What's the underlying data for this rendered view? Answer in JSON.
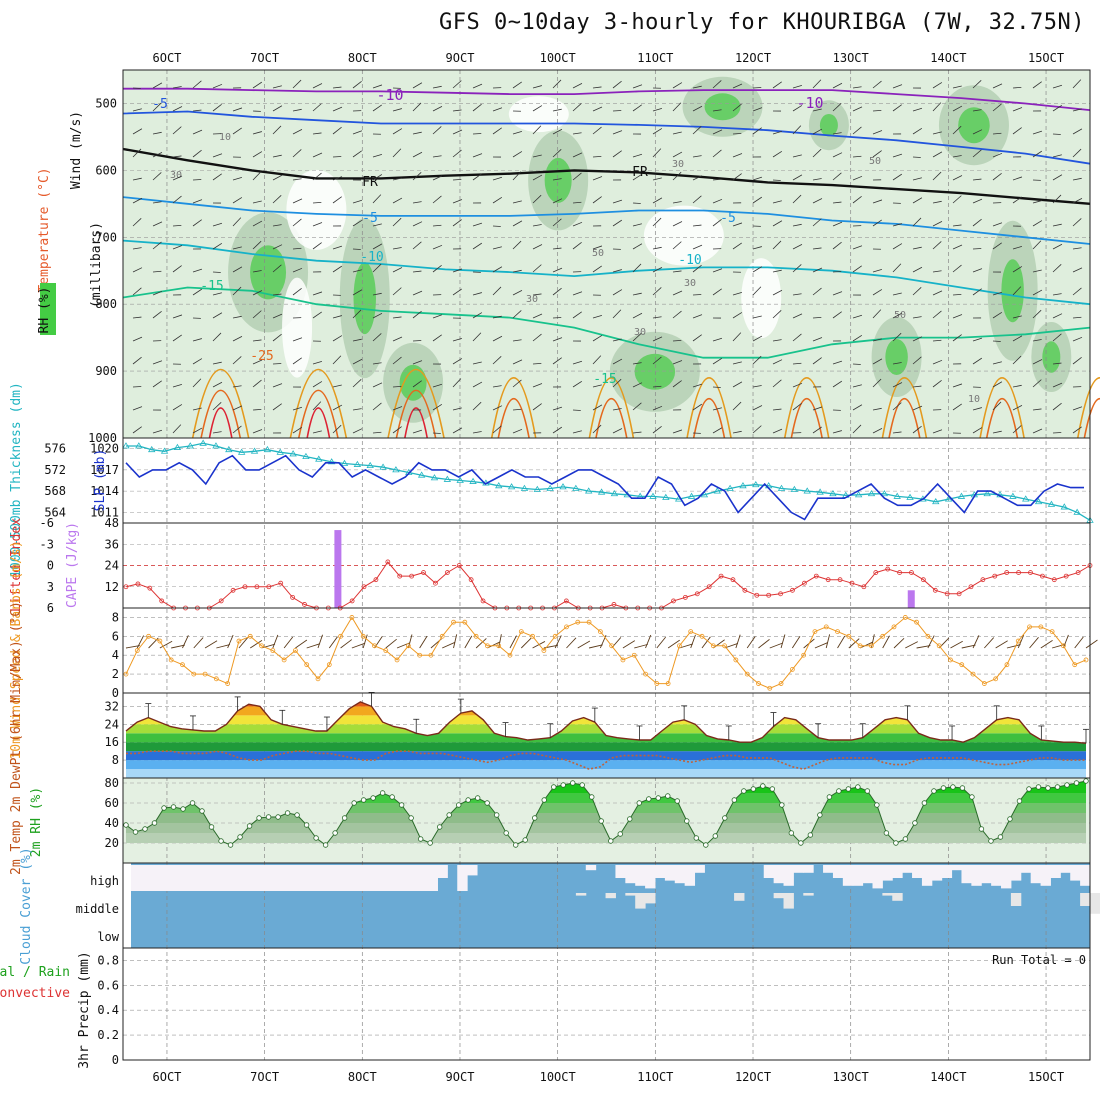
{
  "title": "GFS 0~10day 3-hourly for KHOURIBGA (7W, 32.75N)",
  "dates": [
    "6OCT",
    "7OCT",
    "8OCT",
    "9OCT",
    "10OCT",
    "11OCT",
    "12OCT",
    "13OCT",
    "14OCT",
    "15OCT"
  ],
  "colors": {
    "rh_green": "#44cc44",
    "rh_light": "#dfeedd",
    "thickness": "#22b5c2",
    "slp": "#1a33cc",
    "lifted_index": "#dd3333",
    "cape": "#bb77ee",
    "wind10m": "#ee9922",
    "precip_grid": "#aaaaaa",
    "cloud": "#6aaad4"
  },
  "chart_data": [
    {
      "type": "heatmap",
      "panel": "upper-air",
      "ylabel_rh": "RH (%)",
      "ylabel_temp": "Temperature (°C)",
      "ylabel_wind": "Wind (m/s)",
      "ylabel_pressure": "(millibars)",
      "y_ticks": [
        "500",
        "600",
        "700",
        "800",
        "900",
        "1000"
      ],
      "ylim": [
        450,
        1000
      ],
      "isotherm_labels": [
        "-10",
        "-10",
        "-5",
        "FR",
        "FR",
        "-5",
        "-5",
        "-10",
        "-10",
        "-15",
        "-15",
        "-25"
      ],
      "rh_labels": [
        "10",
        "30",
        "30",
        "30",
        "50",
        "50",
        "10",
        "30",
        "50",
        "30"
      ],
      "isotherms": [
        {
          "value": -10,
          "y": [
            478,
            478,
            480,
            482,
            482,
            484,
            486,
            486,
            482,
            480,
            480,
            480,
            486,
            492,
            500,
            510
          ]
        },
        {
          "value": -5,
          "y": [
            515,
            512,
            520,
            525,
            530,
            530,
            530,
            530,
            532,
            535,
            540,
            548,
            555,
            565,
            575,
            590
          ]
        },
        {
          "value": 0,
          "y": [
            568,
            585,
            600,
            612,
            612,
            608,
            605,
            600,
            603,
            610,
            618,
            622,
            628,
            634,
            642,
            650
          ]
        },
        {
          "value": 5,
          "y": [
            640,
            650,
            660,
            665,
            668,
            668,
            668,
            665,
            660,
            660,
            665,
            675,
            680,
            690,
            700,
            710
          ]
        },
        {
          "value": 10,
          "y": [
            705,
            712,
            725,
            735,
            740,
            748,
            752,
            758,
            750,
            745,
            745,
            750,
            760,
            775,
            790,
            800
          ]
        },
        {
          "value": 15,
          "y": [
            790,
            775,
            780,
            800,
            810,
            815,
            820,
            835,
            860,
            880,
            880,
            860,
            850,
            850,
            845,
            835
          ]
        }
      ]
    },
    {
      "type": "line",
      "panel": "thickness-slp",
      "ylabel_thickness": "1000-500mb Thickness (dm)",
      "ylabel_slp": "SLP (mb)",
      "thickness_ticks": [
        "564",
        "568",
        "572",
        "576"
      ],
      "slp_ticks": [
        "1011",
        "1014",
        "1017",
        "1020"
      ],
      "thickness_ylim": [
        562,
        578
      ],
      "slp_ylim": [
        1009.5,
        1021.5
      ],
      "thickness": [
        576.5,
        576.5,
        575.8,
        575.5,
        576.2,
        576.5,
        577,
        576.5,
        575.8,
        575.3,
        575.5,
        575.8,
        575.3,
        575,
        574.5,
        574,
        573.5,
        573.2,
        573,
        572.8,
        572.5,
        572,
        571.5,
        571,
        570.5,
        570.2,
        570,
        569.8,
        569.5,
        569,
        568.8,
        568.5,
        568.3,
        568.5,
        568.8,
        568.5,
        568,
        567.8,
        567.5,
        567.3,
        567,
        567,
        566.8,
        566.5,
        567,
        567.3,
        568,
        568.5,
        569,
        569.2,
        569,
        568.5,
        568.3,
        568,
        567.8,
        567.5,
        567.2,
        567.3,
        567.5,
        567.5,
        567,
        566.8,
        566.5,
        566,
        566.5,
        567,
        567.3,
        567.5,
        567.3,
        567,
        566.5,
        566,
        565.5,
        565,
        564,
        562.5
      ],
      "slp": [
        1018,
        1016,
        1017,
        1017,
        1018,
        1017,
        1015,
        1018,
        1019,
        1017,
        1017,
        1018,
        1019,
        1017,
        1016,
        1018,
        1018,
        1016,
        1017,
        1016,
        1015,
        1016,
        1018,
        1017,
        1017,
        1016,
        1017,
        1015,
        1016,
        1017,
        1016,
        1016,
        1015,
        1016,
        1017,
        1017,
        1016,
        1015,
        1013,
        1013,
        1016,
        1015,
        1012,
        1013,
        1015,
        1014,
        1011,
        1013,
        1015,
        1013,
        1011,
        1010,
        1013,
        1013,
        1013,
        1014,
        1015,
        1013,
        1012,
        1012,
        1013,
        1015,
        1013,
        1011,
        1014,
        1014,
        1013,
        1012,
        1012,
        1014,
        1015,
        1014.5,
        1014.5
      ],
      "thickness_marker": "triangle"
    },
    {
      "type": "line",
      "panel": "li-cape",
      "ylabel_li": "Lifted Index",
      "ylabel_cape": "CAPE (J/kg)",
      "li_ticks": [
        "-6",
        "-3",
        "0",
        "3",
        "6"
      ],
      "cape_ticks": [
        "12",
        "24",
        "36",
        "48"
      ],
      "li_ylim": [
        6,
        -6
      ],
      "cape_ylim": [
        0,
        48
      ],
      "lifted_index": [
        3,
        2.6,
        3.2,
        5,
        6,
        6.5,
        6,
        6.5,
        5,
        3.5,
        3,
        3,
        3,
        2.5,
        4.5,
        5.5,
        6,
        6.5,
        6,
        5,
        3,
        2,
        -0.5,
        1.5,
        1.5,
        1,
        2.5,
        1,
        0,
        2,
        5,
        7,
        7.5,
        6.5,
        7,
        6.5,
        6,
        5,
        6.5,
        7,
        6,
        5.5,
        6.5,
        6,
        6.5,
        6,
        5,
        4.5,
        4,
        3,
        1.5,
        2,
        3.5,
        4.2,
        4.2,
        4,
        3.5,
        2.5,
        1.5,
        2,
        2,
        2.5,
        3,
        1,
        0.5,
        1,
        1,
        2,
        3.5,
        4,
        4,
        3,
        2,
        1.5,
        1,
        1,
        1,
        1.5,
        2,
        1.5,
        1,
        0
      ],
      "cape_bars": [
        {
          "x_day": 7.75,
          "value": 44
        },
        {
          "x_day": 13.62,
          "value": 10
        }
      ],
      "zero_line": true
    },
    {
      "type": "line",
      "panel": "wind10m",
      "ylabel": "10m Wind Speed & Barbs (m/s)",
      "y_ticks": [
        "0",
        "2",
        "4",
        "6",
        "8"
      ],
      "ylim": [
        0,
        9
      ],
      "speed": [
        2,
        4.5,
        6,
        5.5,
        3.5,
        3,
        2,
        2,
        1.5,
        1,
        5.5,
        6,
        5,
        4.5,
        3.5,
        4.5,
        3,
        1.5,
        3,
        6,
        8,
        6,
        5,
        4.5,
        3.5,
        5,
        4,
        4,
        6,
        7.5,
        7.5,
        6,
        5,
        5,
        4,
        6.5,
        6,
        4.5,
        6,
        7,
        7.5,
        7.5,
        6.5,
        5,
        3.5,
        4,
        2,
        1,
        1,
        5,
        6.5,
        6,
        5,
        5,
        3.5,
        2,
        1,
        0.5,
        1,
        2.5,
        4,
        6.5,
        7,
        6.5,
        6,
        5,
        5,
        6,
        7,
        8,
        7.5,
        6,
        5,
        3.5,
        3,
        2,
        1,
        1.5,
        3,
        5.5,
        7,
        7,
        6.5,
        5,
        3,
        3.5
      ]
    },
    {
      "type": "area",
      "panel": "temp-dewpt",
      "ylabel": "2m Temp 2m DewPt (6hr Min/Max) (°C)",
      "y_ticks": [
        "8",
        "16",
        "24",
        "32"
      ],
      "ylim": [
        0,
        38
      ],
      "temperature": [
        21,
        25,
        27,
        25,
        23,
        22,
        21.5,
        21,
        21,
        24,
        30,
        33,
        32,
        26,
        24,
        23,
        22,
        21,
        21,
        26,
        31,
        34,
        32,
        25,
        23,
        22,
        20,
        19,
        20,
        25,
        29,
        30,
        26,
        20,
        18.5,
        18,
        17,
        17.5,
        18,
        21,
        25.5,
        27,
        25,
        19,
        18,
        17.5,
        17,
        17,
        21,
        25,
        26,
        24,
        19,
        17.5,
        17,
        16,
        16,
        18,
        23,
        27,
        26,
        22,
        18,
        17,
        17,
        17,
        18,
        22,
        26,
        27,
        26,
        20,
        18,
        17,
        17,
        16,
        18,
        22,
        26,
        27,
        26,
        20,
        17,
        16.5,
        16,
        16,
        15.5
      ],
      "dewpoint": [
        11,
        11,
        12,
        12,
        12,
        11,
        11,
        11,
        12,
        11,
        9,
        8,
        8,
        10,
        11,
        12,
        12,
        11,
        11,
        10,
        9,
        8,
        8,
        11,
        12,
        12,
        11,
        11,
        11,
        10,
        9,
        8,
        7,
        8,
        10,
        11,
        11,
        10,
        9,
        8,
        6,
        4,
        5,
        9,
        10,
        10,
        10,
        10,
        9,
        8,
        7,
        8,
        9,
        10,
        10,
        9,
        9,
        9,
        7,
        5,
        4,
        6,
        8,
        9,
        9,
        9,
        9,
        7,
        6,
        6,
        8,
        9,
        9,
        9,
        9,
        8,
        7,
        6,
        6,
        7,
        8,
        9,
        9,
        8,
        8,
        8
      ],
      "maxmin_ticks": true
    },
    {
      "type": "area",
      "panel": "rh2m",
      "ylabel": "2m RH (%)",
      "y_ticks": [
        "20",
        "40",
        "60",
        "80"
      ],
      "ylim": [
        0,
        85
      ],
      "rh": [
        38,
        31,
        34,
        40,
        55,
        56,
        54,
        60,
        52,
        36,
        22,
        18,
        26,
        37,
        45,
        46,
        46,
        50,
        48,
        38,
        25,
        18,
        30,
        45,
        60,
        63,
        65,
        70,
        66,
        58,
        45,
        24,
        20,
        36,
        48,
        58,
        63,
        65,
        60,
        48,
        30,
        18,
        23,
        45,
        63,
        76,
        78,
        80,
        78,
        66,
        42,
        22,
        29,
        44,
        60,
        64,
        65,
        67,
        62,
        42,
        25,
        18,
        27,
        45,
        63,
        72,
        74,
        77,
        74,
        58,
        30,
        20,
        28,
        48,
        66,
        72,
        74,
        76,
        72,
        58,
        30,
        20,
        24,
        40,
        60,
        72,
        75,
        76,
        75,
        66,
        34,
        22,
        26,
        44,
        62,
        74,
        76,
        75,
        76,
        78,
        80,
        82
      ]
    },
    {
      "type": "table",
      "panel": "cloud-cover",
      "ylabel": "Cloud Cover (%)",
      "levels": [
        "high",
        "middle",
        "low"
      ],
      "high_clear_fraction": [
        1,
        1,
        1,
        1,
        1,
        1,
        1,
        1,
        1,
        1,
        1,
        1,
        1,
        1,
        1,
        1,
        1,
        1,
        1,
        1,
        1,
        1,
        1,
        1,
        1,
        1,
        1,
        1,
        1,
        1,
        1,
        0.5,
        0,
        1,
        0.4,
        0,
        0,
        0,
        0,
        0,
        0,
        0,
        0,
        0,
        0,
        0,
        0.2,
        0,
        0,
        0.5,
        0.7,
        0.8,
        0.9,
        0.5,
        0.6,
        0.7,
        0.8,
        0.3,
        0,
        0,
        0,
        0,
        0,
        0,
        0.5,
        0.7,
        0.8,
        0.3,
        0.3,
        0,
        0.3,
        0.5,
        0.8,
        0.8,
        0.7,
        0.9,
        0.6,
        0.5,
        0.3,
        0.5,
        0.8,
        0.6,
        0.5,
        0.2,
        0.7,
        0.8,
        0.7,
        0.8,
        0.9,
        0.6,
        0.3,
        0.7,
        0.8,
        0.5,
        0.3,
        0.6,
        0.8
      ],
      "middle_clear_fraction": [
        0,
        0,
        0,
        0,
        0,
        0,
        0,
        0,
        0,
        0,
        0,
        0,
        0,
        0,
        0,
        0,
        0,
        0,
        0,
        0,
        0,
        0,
        0,
        0,
        0,
        0,
        0,
        0,
        0,
        0,
        0,
        0,
        0,
        0,
        0,
        0,
        0,
        0,
        0,
        0,
        0,
        0,
        0,
        0,
        0,
        0.1,
        0,
        0,
        0.2,
        0,
        0.1,
        0.6,
        0.4,
        0,
        0,
        0,
        0,
        0,
        0,
        0,
        0,
        0.3,
        0,
        0,
        0,
        0.2,
        0.6,
        0,
        0.1,
        0,
        0,
        0,
        0,
        0,
        0,
        0,
        0.1,
        0.3,
        0,
        0,
        0,
        0,
        0,
        0,
        0,
        0,
        0,
        0,
        0,
        0.5,
        0,
        0,
        0,
        0,
        0,
        0,
        0.5,
        0.8,
        0,
        0
      ]
    },
    {
      "type": "bar",
      "panel": "precip",
      "ylabel_total": "Total / Rain",
      "ylabel_conv": "Convective",
      "ylabel": "3hr Precip (mm)",
      "y_ticks": [
        "0",
        "0.2",
        "0.4",
        "0.6",
        "0.8"
      ],
      "ylim": [
        0,
        0.9
      ],
      "values": [],
      "run_total_label": "Run Total = 0"
    }
  ]
}
